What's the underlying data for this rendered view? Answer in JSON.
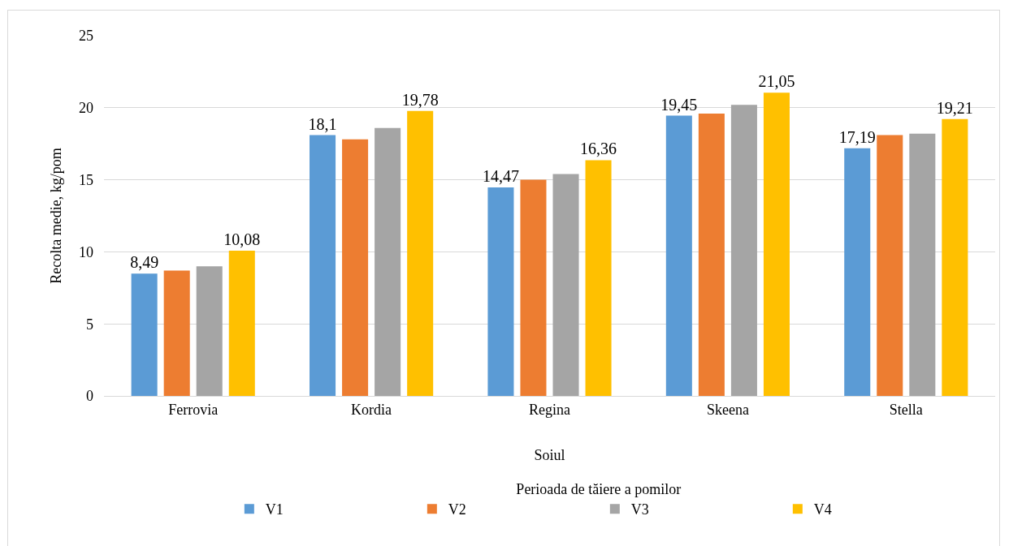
{
  "chart_data": {
    "type": "bar",
    "ylabel": "Recolta medie, kg/pom",
    "xlabel": "Soiul",
    "legend_title": "Perioada de tăiere a pomilor",
    "categories": [
      "Ferrovia",
      "Kordia",
      "Regina",
      "Skeena",
      "Stella"
    ],
    "series": [
      {
        "name": "V1",
        "color": "#5b9bd5",
        "values": [
          8.49,
          18.1,
          14.47,
          19.45,
          17.19
        ],
        "value_labels": [
          "8,49",
          "18,1",
          "14,47",
          "19,45",
          "17,19"
        ]
      },
      {
        "name": "V2",
        "color": "#ed7d31",
        "values": [
          8.7,
          17.8,
          15.0,
          19.6,
          18.1
        ]
      },
      {
        "name": "V3",
        "color": "#a5a5a5",
        "values": [
          9.0,
          18.6,
          15.4,
          20.2,
          18.2
        ]
      },
      {
        "name": "V4",
        "color": "#ffc000",
        "values": [
          10.08,
          19.78,
          16.36,
          21.05,
          19.21
        ],
        "value_labels": [
          "10,08",
          "19,78",
          "16,36",
          "21,05",
          "19,21"
        ]
      }
    ],
    "ylim": [
      0,
      25
    ],
    "yticks": [
      0,
      5,
      10,
      15,
      20,
      25
    ],
    "grid": "y",
    "legend": "bottom"
  }
}
